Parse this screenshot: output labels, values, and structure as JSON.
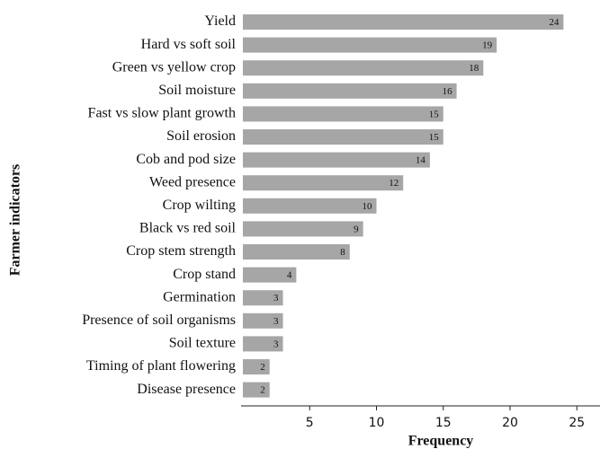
{
  "chart_data": {
    "type": "barh",
    "x_label": "Frequency",
    "y_label": "Farmer indicators",
    "categories": [
      "Yield",
      "Hard vs soft soil",
      "Green vs yellow crop",
      "Soil moisture",
      "Fast vs slow plant growth",
      "Soil erosion",
      "Cob and pod size",
      "Weed presence",
      "Crop wilting",
      "Black vs red soil",
      "Crop stem strength",
      "Crop stand",
      "Germination",
      "Presence of soil organisms",
      "Soil texture",
      "Timing of plant flowering",
      "Disease presence"
    ],
    "values": [
      24,
      19,
      18,
      16,
      15,
      15,
      14,
      12,
      10,
      9,
      8,
      4,
      3,
      3,
      3,
      2,
      2
    ],
    "color": "#a6a6a6",
    "xlim": [
      0,
      26.6
    ],
    "xticks": [
      5,
      10,
      15,
      20,
      25
    ]
  }
}
